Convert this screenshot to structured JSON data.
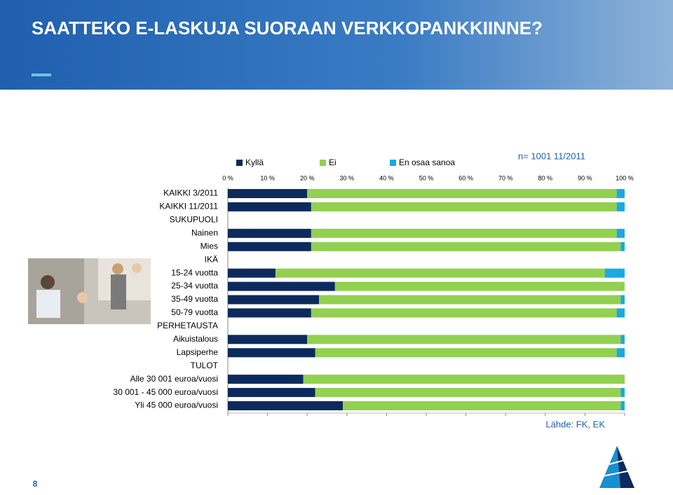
{
  "slide": {
    "title": "SAATTEKO E-LASKUJA SUORAAN VERKKOPANKKIINNE?",
    "page": "8"
  },
  "chart_data": {
    "type": "stacked-bar-horizontal",
    "note": "n= 1001  11/2011",
    "source": "Lähde: FK, EK",
    "categories": [
      "KAIKKI 3/2011",
      "KAIKKI 11/2011",
      "SUKUPUOLI",
      "Nainen",
      "Mies",
      "IKÄ",
      "15-24 vuotta",
      "25-34 vuotta",
      "35-49 vuotta",
      "50-79 vuotta",
      "PERHETAUSTA",
      "Aikuistalous",
      "Lapsiperhe",
      "TULOT",
      "Alle 30 001 euroa/vuosi",
      "30 001 - 45 000 euroa/vuosi",
      "Yli 45 000 euroa/vuosi"
    ],
    "series": [
      {
        "name": "Kyllä",
        "color": "#0d2a5c",
        "values": [
          20,
          21,
          null,
          21,
          21,
          null,
          12,
          27,
          23,
          21,
          null,
          20,
          22,
          null,
          19,
          22,
          29
        ]
      },
      {
        "name": "Ei",
        "color": "#92d050",
        "values": [
          78,
          77,
          null,
          77,
          78,
          null,
          83,
          73,
          76,
          77,
          null,
          79,
          76,
          null,
          81,
          77,
          70
        ]
      },
      {
        "name": "En osaa sanoa",
        "color": "#1aa9e0",
        "values": [
          2,
          2,
          null,
          2,
          1,
          null,
          5,
          0,
          1,
          2,
          null,
          1,
          2,
          null,
          0,
          1,
          1
        ]
      }
    ],
    "xlim": [
      0,
      100
    ],
    "xticks": [
      {
        "value": 0,
        "label": "0 %"
      },
      {
        "value": 10,
        "label": "10 %"
      },
      {
        "value": 20,
        "label": "20 %"
      },
      {
        "value": 30,
        "label": "30 %"
      },
      {
        "value": 40,
        "label": "40 %"
      },
      {
        "value": 50,
        "label": "50 %"
      },
      {
        "value": 60,
        "label": "60 %"
      },
      {
        "value": 70,
        "label": "70 %"
      },
      {
        "value": 80,
        "label": "80 %"
      },
      {
        "value": 90,
        "label": "90 %"
      },
      {
        "value": 100,
        "label": "100 %"
      }
    ],
    "legend": "top"
  }
}
